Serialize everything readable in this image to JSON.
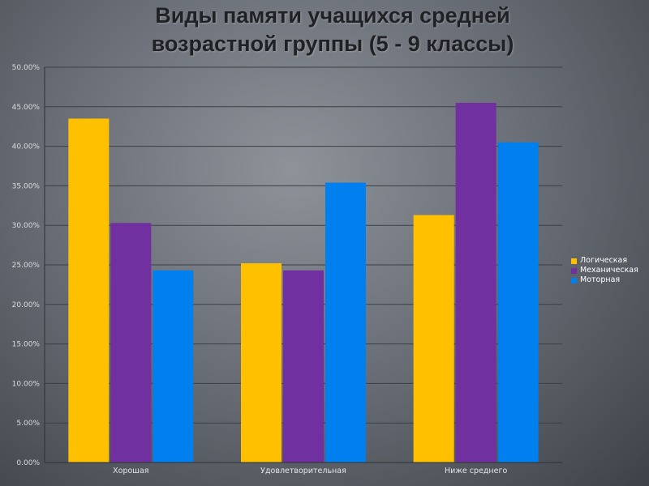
{
  "title_lines": [
    "Виды памяти учащихся средней",
    "возрастной группы (5 - 9 классы)"
  ],
  "chart_data": {
    "type": "bar",
    "title": "Виды памяти учащихся средней возрастной группы (5 - 9 классы)",
    "categories": [
      "Хорошая",
      "Удовлетворительная",
      "Ниже среднего"
    ],
    "series": [
      {
        "name": "Логическая",
        "color": "#ffc000",
        "values": [
          43.5,
          25.2,
          31.3
        ]
      },
      {
        "name": "Механическая",
        "color": "#7030a0",
        "values": [
          30.3,
          24.3,
          45.5
        ]
      },
      {
        "name": "Моторная",
        "color": "#0080ee",
        "values": [
          24.3,
          35.4,
          40.5
        ]
      }
    ],
    "yticks": [
      "0.00%",
      "5.00%",
      "10.00%",
      "15.00%",
      "20.00%",
      "25.00%",
      "30.00%",
      "35.00%",
      "40.00%",
      "45.00%",
      "50.00%"
    ],
    "ylim": [
      0,
      50
    ],
    "grid": true,
    "legend_position": "right"
  }
}
